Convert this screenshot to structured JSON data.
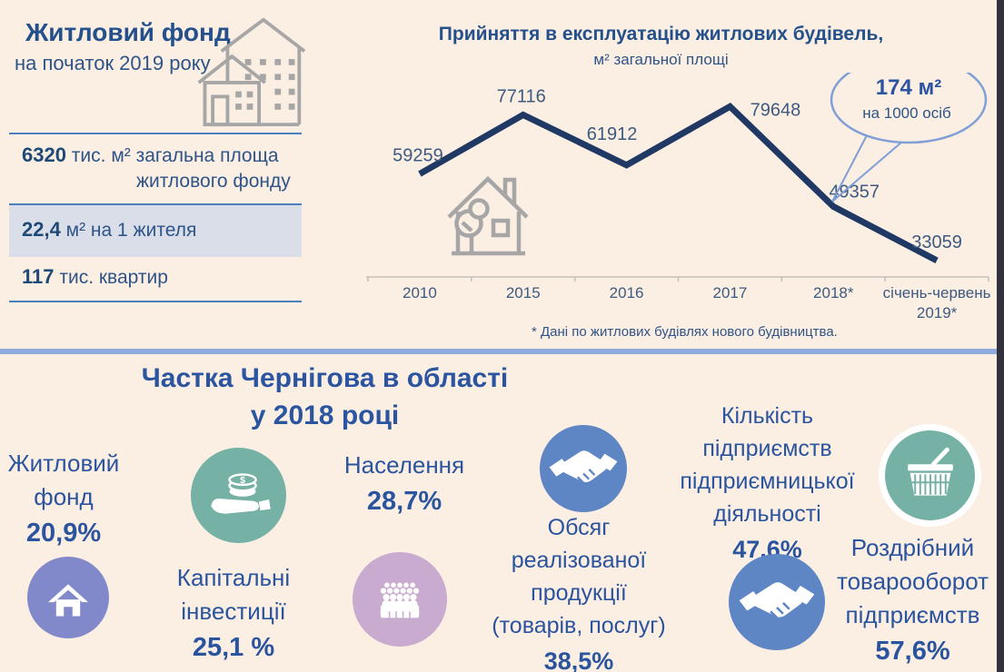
{
  "colors": {
    "background": "#FBEEE3",
    "navy_title": "#24518B",
    "navy_body": "#2E5488",
    "bottom_text": "#2B549E",
    "chart_line": "#1F3864",
    "divider": "#8FAADC",
    "icon_teal": "#76B1A6",
    "icon_purple": "#8289CB",
    "icon_pink": "#C9ABD0",
    "icon_blue": "#5E86C4",
    "icon_gray": "#A6A6A6"
  },
  "housing_panel": {
    "title": "Житловий фонд",
    "subtitle": "на початок 2019 року",
    "stat1_value": "6320",
    "stat1_label": "тис. м² загальна площа",
    "stat1_label2": "житлового фонду",
    "stat2_value": "22,4",
    "stat2_label": "м² на 1 жителя",
    "stat3_value": "117",
    "stat3_label": "тис. квартир"
  },
  "chart_data": {
    "type": "line",
    "title": "Прийняття в експлуатацію житлових будівель,",
    "subtitle": "м² загальної площі",
    "categories": [
      "2010",
      "2015",
      "2016",
      "2017",
      "2018*",
      "січень-червень 2019*"
    ],
    "values": [
      59259,
      77116,
      61912,
      79648,
      49357,
      33059
    ],
    "ylim": [
      30000,
      80000
    ],
    "grid": false,
    "legend": "none",
    "line_color": "#1F3864",
    "label_color": "#3D5A80",
    "annotation": {
      "value": "174 м²",
      "sub": "на 1000 осіб",
      "points_to_value": 49357
    },
    "footnote": "* Дані по житлових  будівлях нового будівництва."
  },
  "share_section": {
    "title_line1": "Частка Чернігова в області",
    "title_line2": "у 2018 році",
    "items": [
      {
        "id": "housing-stock",
        "lines": [
          "Житловий",
          "фонд"
        ],
        "value": "20,9%"
      },
      {
        "id": "capital-investments",
        "lines": [
          "Капітальні",
          "інвестиції"
        ],
        "value": "25,1 %"
      },
      {
        "id": "population",
        "lines": [
          "Населення"
        ],
        "value": "28,7%"
      },
      {
        "id": "sold-production",
        "lines": [
          "Обсяг",
          "реалізованої",
          "продукції",
          "(товарів, послуг)"
        ],
        "value": "38,5%"
      },
      {
        "id": "enterprises-count",
        "lines": [
          "Кількість",
          "підприємств",
          "підприємницької",
          "діяльності"
        ],
        "value": "47,6%"
      },
      {
        "id": "retail-turnover",
        "lines": [
          "Роздрібний",
          "товарооборот",
          "підприємств"
        ],
        "value": "57,6%"
      }
    ]
  }
}
